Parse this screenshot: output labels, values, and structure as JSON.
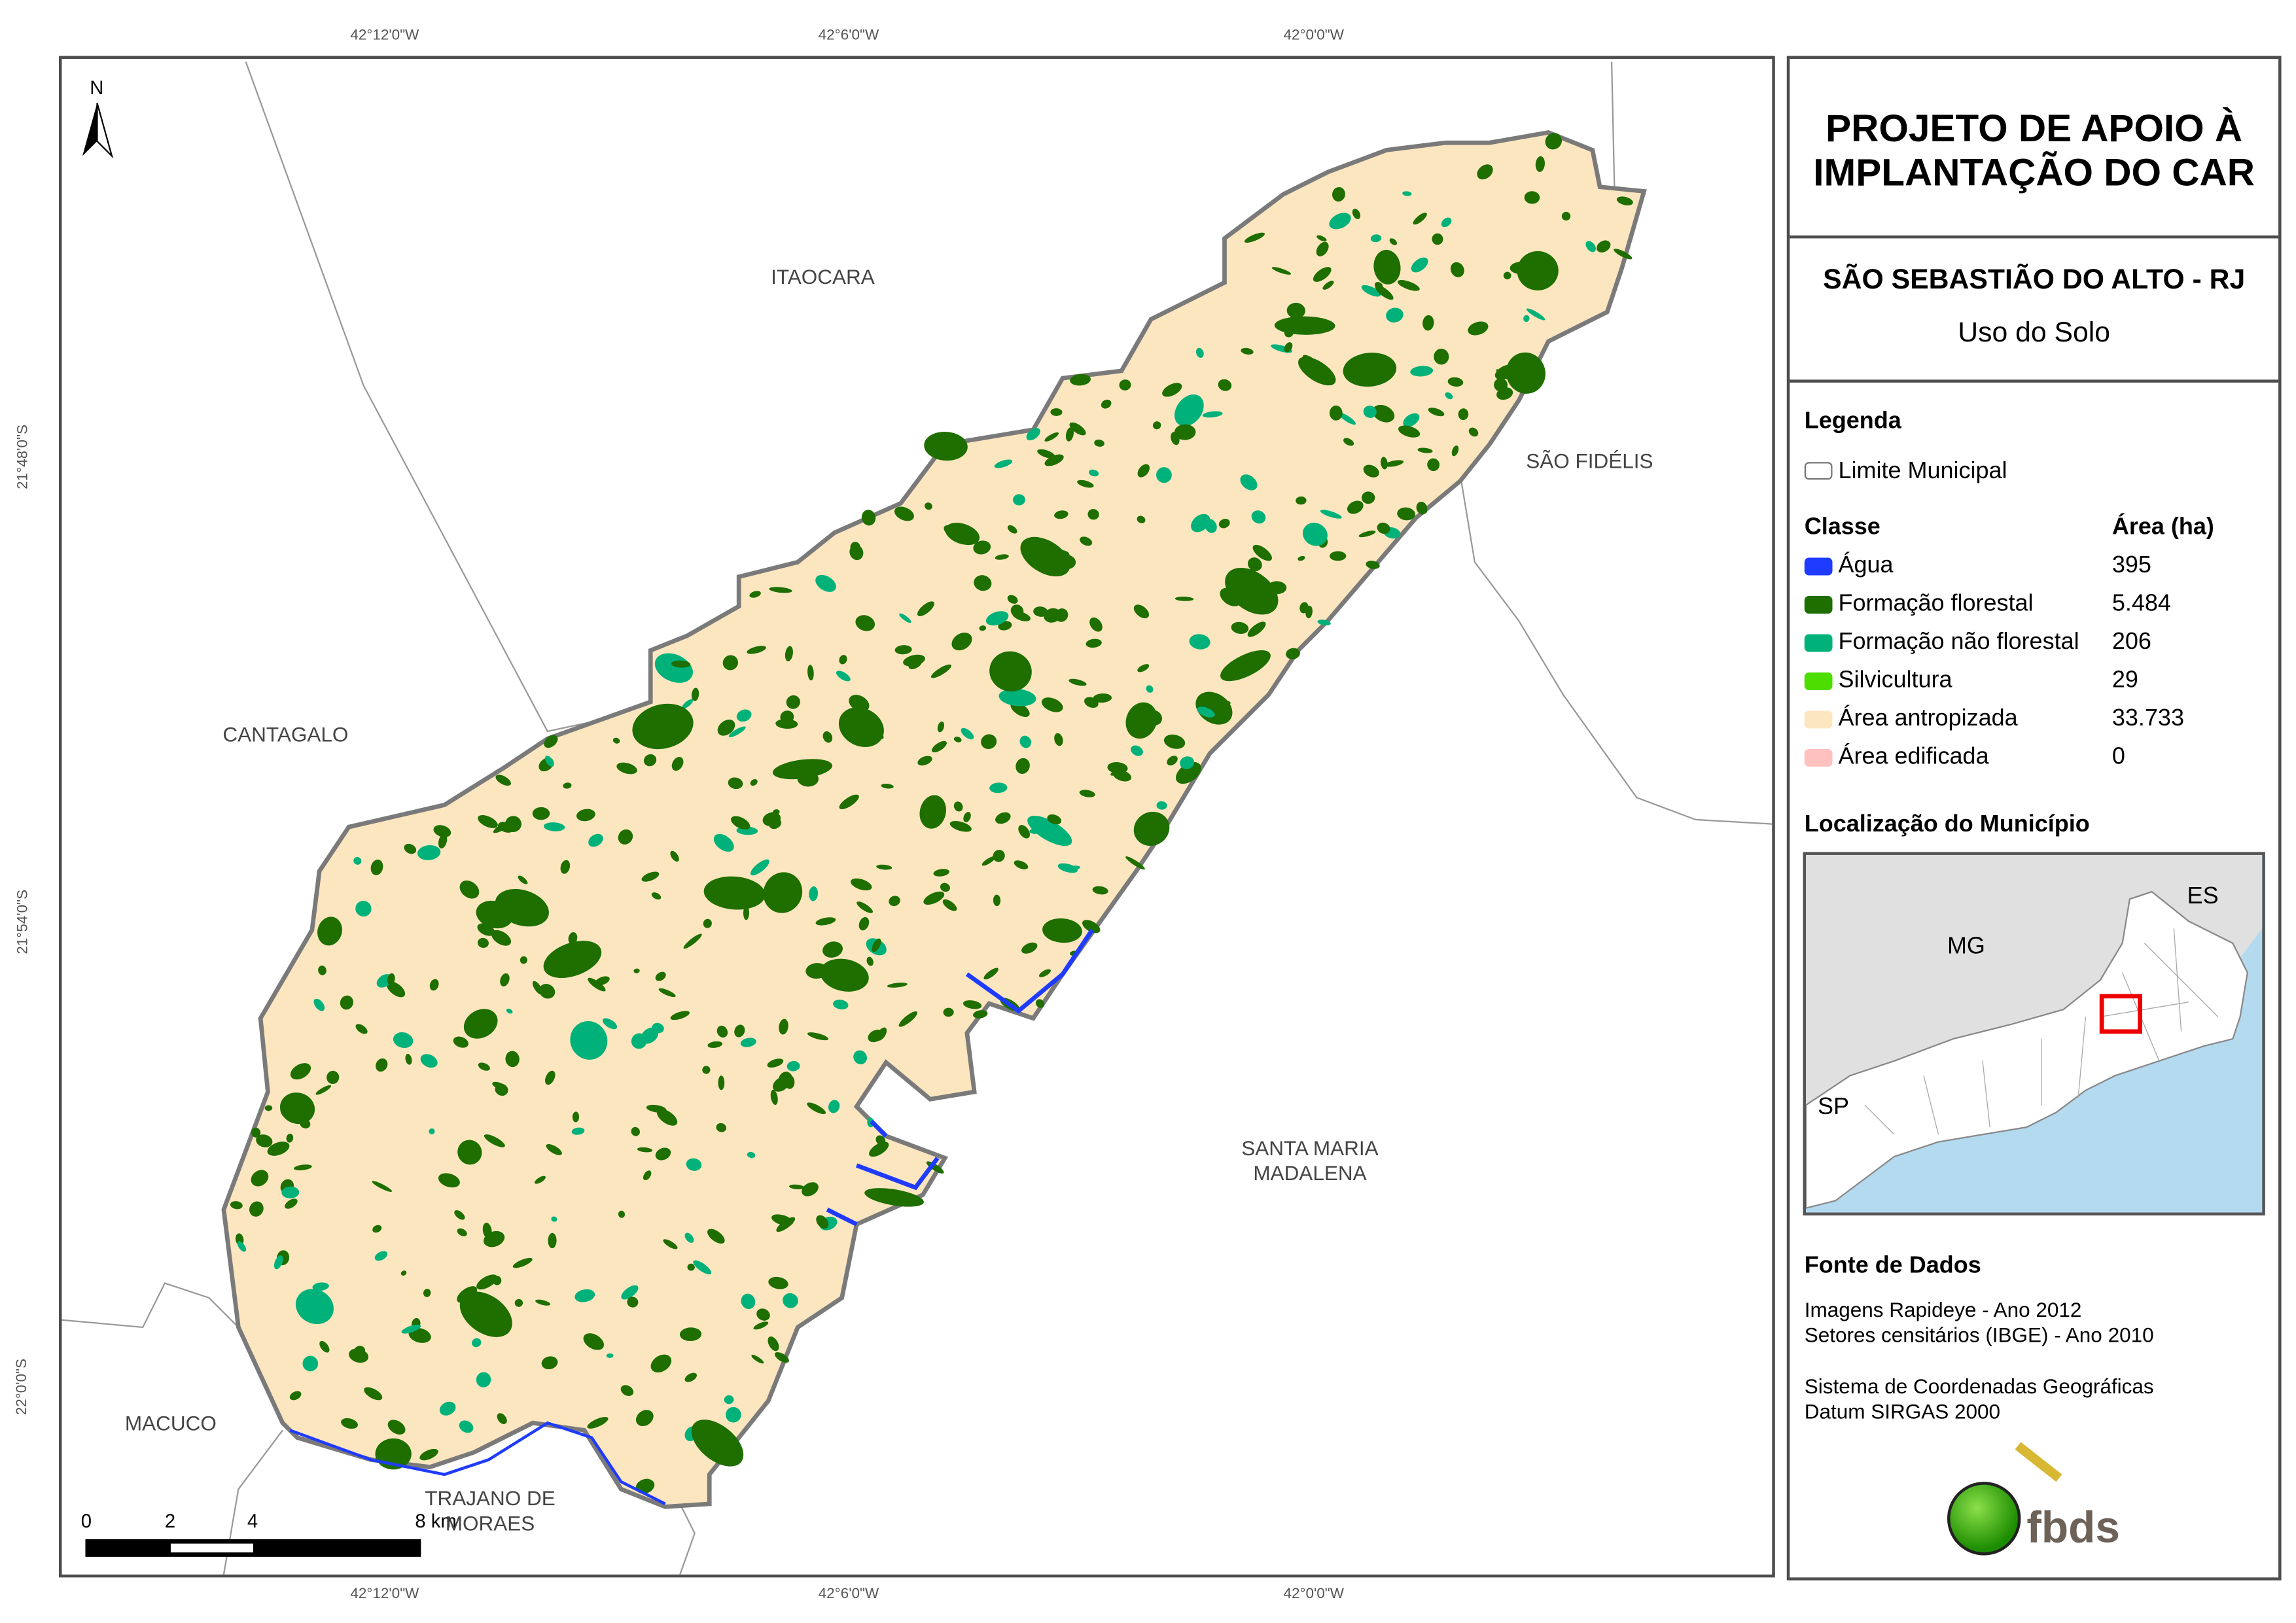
{
  "map": {
    "north_label": "N",
    "coords_top": [
      "42°12'0\"W",
      "42°6'0\"W",
      "42°0'0\"W"
    ],
    "coords_bottom": [
      "42°12'0\"W",
      "42°6'0\"W",
      "42°0'0\"W"
    ],
    "coords_left": [
      "21°48'0\"S",
      "21°54'0\"S",
      "22°0'0\"S"
    ],
    "neighbors": {
      "itaocara": "ITAOCARA",
      "sao_fidelis": "SÃO FIDÉLIS",
      "cantagalo": "CANTAGALO",
      "santa_maria_1": "SANTA MARIA",
      "santa_maria_2": "MADALENA",
      "macuco": "MACUCO",
      "trajano_1": "TRAJANO DE",
      "trajano_2": "MORAES"
    },
    "scale_labels": [
      "0",
      "2",
      "4",
      "8 km"
    ]
  },
  "panel": {
    "title_line1": "PROJETO DE APOIO À",
    "title_line2": "IMPLANTAÇÃO DO CAR",
    "municipality": "SÃO SEBASTIÃO DO ALTO - RJ",
    "subtitle": "Uso do Solo",
    "legend_title": "Legenda",
    "limit_label": "Limite Municipal",
    "class_header": "Classe",
    "area_header": "Área (ha)",
    "classes": [
      {
        "label": "Água",
        "area": "395",
        "color": "#1f3bff"
      },
      {
        "label": "Formação florestal",
        "area": "5.484",
        "color": "#1e6e00"
      },
      {
        "label": "Formação não florestal",
        "area": "206",
        "color": "#00b27a"
      },
      {
        "label": "Silvicultura",
        "area": "29",
        "color": "#4ddd00"
      },
      {
        "label": "Área antropizada",
        "area": "33.733",
        "color": "#fce6c0"
      },
      {
        "label": "Área edificada",
        "area": "0",
        "color": "#ffc0c0"
      }
    ],
    "location_title": "Localização do Município",
    "inset_labels": {
      "es": "ES",
      "mg": "MG",
      "sp": "SP"
    },
    "source_title": "Fonte de Dados",
    "source_lines": [
      "Imagens Rapideye - Ano 2012",
      "Setores censitários (IBGE) - Ano 2010"
    ],
    "crs_lines": [
      "Sistema de Coordenadas Geográficas",
      "Datum SIRGAS 2000"
    ],
    "logo_text": "fbds"
  }
}
